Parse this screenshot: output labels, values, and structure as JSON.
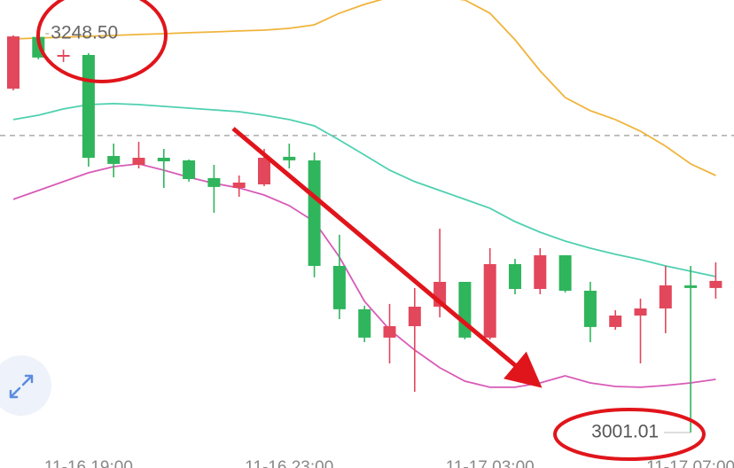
{
  "chart_data": {
    "type": "candlestick",
    "categories": [
      null,
      null,
      null,
      "11-16 19:00",
      null,
      null,
      null,
      null,
      null,
      null,
      null,
      "11-16 23:00",
      null,
      null,
      null,
      null,
      null,
      null,
      null,
      "11-17 03:00",
      null,
      null,
      null,
      null,
      null,
      null,
      null,
      "11-17 07:00",
      null
    ],
    "open": [
      3214.4,
      3246.5,
      3234.2,
      3235.3,
      3172.6,
      3167.1,
      3171.5,
      3169.9,
      3158.9,
      3152.8,
      3155.0,
      3172.1,
      3169.9,
      3104.4,
      3077.5,
      3059.9,
      3067.0,
      3079.1,
      3094.5,
      3059.9,
      3105.5,
      3090.1,
      3111.0,
      3089.0,
      3066.5,
      3073.6,
      3078.0,
      3092.3,
      3090.7
    ],
    "high": [
      3247.5,
      3248.5,
      3238.6,
      3236.4,
      3180.3,
      3181.4,
      3177.0,
      3170.4,
      3167.1,
      3160.5,
      3177.0,
      3180.3,
      3174.8,
      3123.7,
      3079.7,
      3080.8,
      3090.7,
      3127.5,
      3094.5,
      3115.4,
      3108.8,
      3115.4,
      3111.0,
      3094.5,
      3076.9,
      3084.1,
      3104.4,
      3104.4,
      3106.6
    ],
    "low": [
      3213.3,
      3232.6,
      3230.9,
      3166.0,
      3159.4,
      3164.9,
      3152.8,
      3156.7,
      3137.4,
      3147.3,
      3153.9,
      3164.9,
      3097.3,
      3071.4,
      3057.1,
      3043.9,
      3026.3,
      3072.5,
      3058.8,
      3058.8,
      3086.8,
      3086.8,
      3087.9,
      3057.1,
      3064.8,
      3043.9,
      3062.6,
      3001.01,
      3084.1
    ],
    "close": [
      3246.8,
      3233.7,
      3235.3,
      3171.5,
      3167.7,
      3171.5,
      3169.3,
      3158.3,
      3153.4,
      3156.1,
      3171.5,
      3169.9,
      3104.4,
      3077.5,
      3059.9,
      3067.0,
      3079.1,
      3094.5,
      3059.9,
      3105.5,
      3090.1,
      3111.0,
      3089.0,
      3066.5,
      3073.6,
      3078.0,
      3092.3,
      3090.7,
      3095.1
    ],
    "up_color": "#e2475b",
    "down_color": "#2fb55c",
    "bands": [
      {
        "color": "#f0b43c",
        "values": [
          3245.2,
          3245.8,
          3246.3,
          3246.9,
          3247.4,
          3248.0,
          3248.5,
          3249.1,
          3249.6,
          3250.2,
          3250.7,
          3251.8,
          3254.0,
          3261.2,
          3266.7,
          3271.1,
          3272.7,
          3271.6,
          3269.4,
          3261.2,
          3244.7,
          3225.4,
          3208.9,
          3200.7,
          3195.2,
          3188.0,
          3178.7,
          3167.7,
          3160.5
        ]
      },
      {
        "color": "#4fd0b0",
        "values": [
          3195.2,
          3197.9,
          3201.8,
          3204.5,
          3205.1,
          3204.5,
          3203.4,
          3202.3,
          3201.2,
          3200.1,
          3197.9,
          3195.2,
          3191.3,
          3182.5,
          3173.2,
          3163.8,
          3156.7,
          3151.2,
          3145.7,
          3140.2,
          3131.9,
          3125.3,
          3119.8,
          3115.4,
          3111.6,
          3108.3,
          3104.4,
          3101.1,
          3097.8
        ]
      },
      {
        "color": "#d85bb8",
        "values": [
          3145.7,
          3151.2,
          3156.7,
          3162.2,
          3166.0,
          3167.7,
          3163.8,
          3159.4,
          3155.6,
          3152.8,
          3148.4,
          3141.8,
          3131.9,
          3109.9,
          3082.4,
          3064.8,
          3052.2,
          3041.2,
          3032.9,
          3029.1,
          3029.1,
          3031.8,
          3036.2,
          3031.8,
          3029.6,
          3029.1,
          3030.2,
          3031.8,
          3034.0
        ]
      }
    ],
    "current_price": 3185.3,
    "annotations": [
      {
        "value": 3248.5,
        "label": "3248.50",
        "index": 1
      },
      {
        "value": 3001.01,
        "label": "3001.01",
        "index": 27
      }
    ],
    "ylim": [
      2979.0,
      3269.4
    ]
  }
}
